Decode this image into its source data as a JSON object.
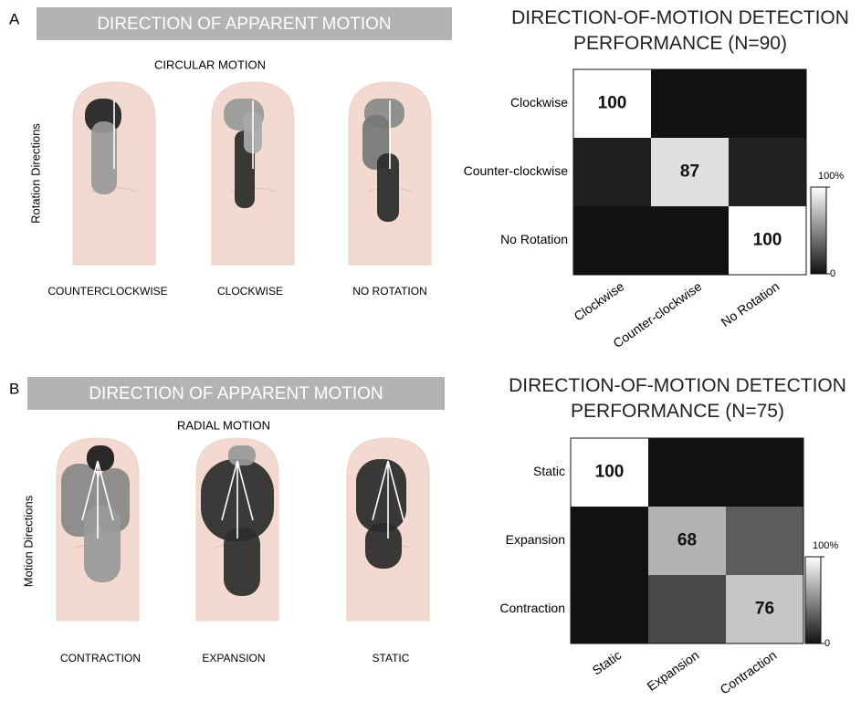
{
  "panels": [
    {
      "label": "A",
      "banner": "DIRECTION OF APPARENT MOTION",
      "subtitle": "CIRCULAR MOTION",
      "axis_label": "Rotation Directions",
      "captions": [
        "COUNTERCLOCKWISE",
        "CLOCKWISE",
        "NO ROTATION"
      ]
    },
    {
      "label": "B",
      "banner": "DIRECTION OF APPARENT MOTION",
      "subtitle": "RADIAL MOTION",
      "axis_label": "Motion Directions",
      "captions": [
        "CONTRACTION",
        "EXPANSION",
        "STATIC"
      ]
    }
  ],
  "chart_data": [
    {
      "type": "heatmap",
      "title": "DIRECTION-OF-MOTION DETECTION PERFORMANCE (N=90)",
      "rows": [
        "Clockwise",
        "Counter-clockwise",
        "No Rotation"
      ],
      "columns": [
        "Clockwise",
        "Counter-clockwise",
        "No Rotation"
      ],
      "values": [
        [
          100,
          0,
          0
        ],
        [
          6,
          87,
          7
        ],
        [
          0,
          0,
          100
        ]
      ],
      "annotate": "diagonal",
      "colormap": "gray",
      "clim": [
        0,
        100
      ],
      "cticks": [
        0,
        {
          "value": 100,
          "label": "100%"
        }
      ]
    },
    {
      "type": "heatmap",
      "title": "DIRECTION-OF-MOTION DETECTION PERFORMANCE (N=75)",
      "rows": [
        "Static",
        "Expansion",
        "Contraction"
      ],
      "columns": [
        "Static",
        "Expansion",
        "Contraction"
      ],
      "values": [
        [
          100,
          0,
          0
        ],
        [
          0,
          68,
          32
        ],
        [
          0,
          24,
          76
        ]
      ],
      "annotate": "diagonal",
      "colormap": "gray",
      "clim": [
        0,
        100
      ],
      "cticks": [
        0,
        {
          "value": 100,
          "label": "100%"
        }
      ]
    }
  ]
}
